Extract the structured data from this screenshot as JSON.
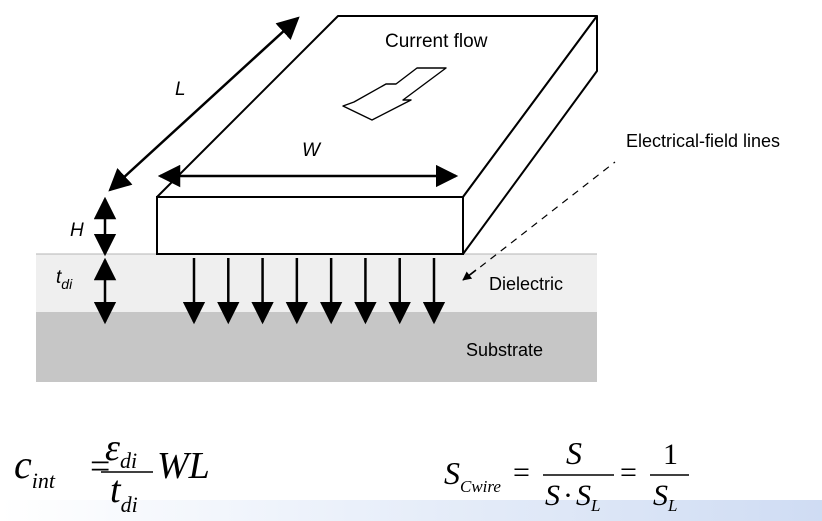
{
  "diagram": {
    "labels": {
      "current_flow": "Current flow",
      "length": "L",
      "width": "W",
      "height": "H",
      "dielectric_thickness_base": "t",
      "dielectric_thickness_sub": "di",
      "field_lines": "Electrical-field lines",
      "dielectric": "Dielectric",
      "substrate": "Substrate"
    },
    "field_line_count": 8,
    "colors": {
      "dielectric": "#efefef",
      "substrate": "#c6c6c6",
      "wire": "#ffffff",
      "stroke": "#000000"
    }
  },
  "equations": {
    "capacitance": {
      "lhs_base": "c",
      "lhs_sub": "int",
      "equals": "=",
      "num_base": "ε",
      "num_sub": "di",
      "den_base": "t",
      "den_sub": "di",
      "tail": "WL"
    },
    "scaling": {
      "lhs_base": "S",
      "lhs_sub": "Cwire",
      "equals1": "=",
      "frac1_num": "S",
      "frac1_den_a": "S",
      "frac1_den_dot": "·",
      "frac1_den_b": "S",
      "frac1_den_b_sub": "L",
      "equals2": "=",
      "frac2_num": "1",
      "frac2_den": "S",
      "frac2_den_sub": "L"
    }
  }
}
